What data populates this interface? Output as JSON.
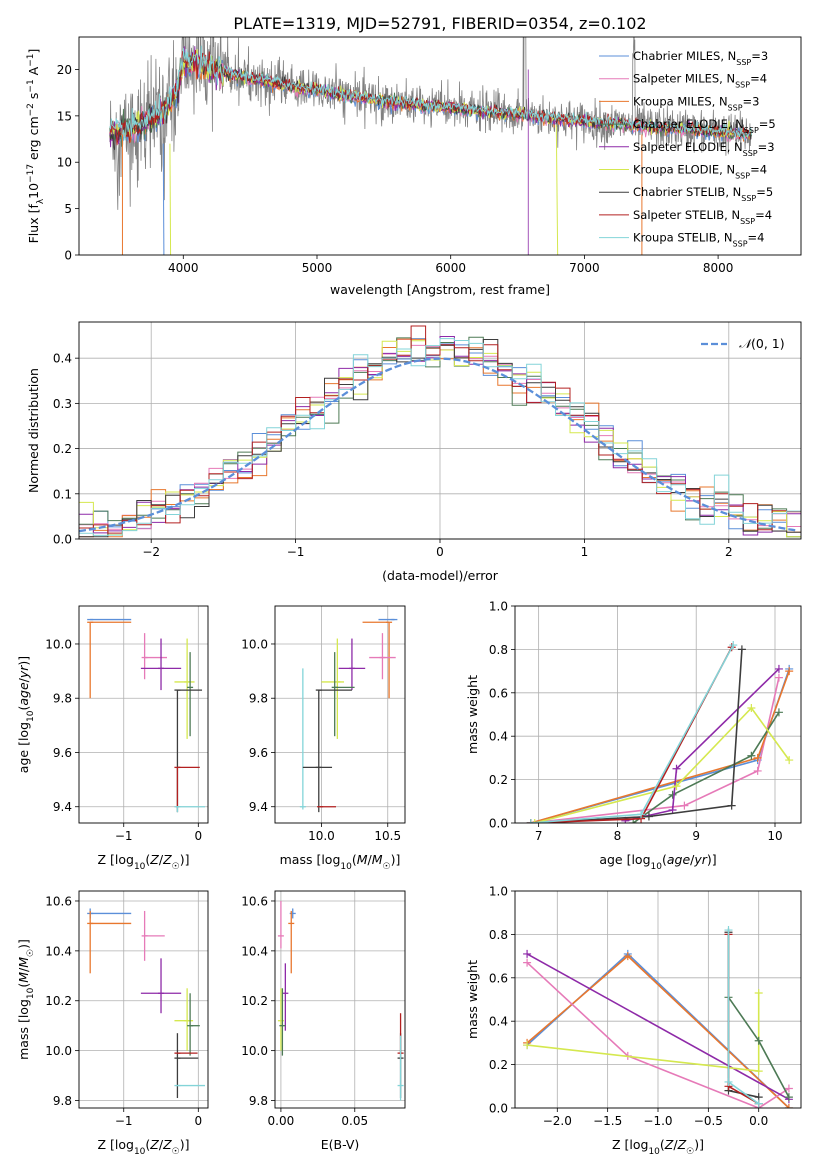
{
  "figure": {
    "title": "PLATE=1319, MJD=52791, FIBERID=0354, z=0.102"
  },
  "colors": {
    "Chabrier MILES": "#5b8fd9",
    "Salpeter MILES": "#e67ab8",
    "Kroupa MILES": "#e8772e",
    "Chabrier ELODIE": "#4d7a55",
    "Salpeter ELODIE": "#8e2aa8",
    "Kroupa ELODIE": "#d5e84f",
    "Chabrier STELIB": "#3d3d3d",
    "Salpeter STELIB": "#b32020",
    "Kroupa STELIB": "#83d4d8",
    "data": "#808080",
    "gaussian": "#5b8fd9"
  },
  "chart_data": [
    {
      "id": "spectrum",
      "type": "line",
      "xlabel": "wavelength [Angstrom, rest frame]",
      "ylabel": "Flux [f_λ10^-17 erg cm^-2 s^-1 A^-1]",
      "xlim": [
        3220,
        8620
      ],
      "ylim": [
        0,
        23.5
      ],
      "xticks": [
        4000,
        5000,
        6000,
        7000,
        8000
      ],
      "yticks": [
        0,
        5,
        10,
        15,
        20
      ],
      "grid": false,
      "legend_position": "upper right",
      "legend": [
        {
          "name": "Chabrier MILES",
          "nssp": "3"
        },
        {
          "name": "Salpeter MILES",
          "nssp": "4"
        },
        {
          "name": "Kroupa MILES",
          "nssp": "3"
        },
        {
          "name": "Chabrier ELODIE",
          "nssp": "5"
        },
        {
          "name": "Salpeter ELODIE",
          "nssp": "3"
        },
        {
          "name": "Kroupa ELODIE",
          "nssp": "4"
        },
        {
          "name": "Chabrier STELIB",
          "nssp": "5"
        },
        {
          "name": "Salpeter STELIB",
          "nssp": "4"
        },
        {
          "name": "Kroupa STELIB",
          "nssp": "4"
        }
      ],
      "continuum_knots": {
        "wavelength": [
          3450,
          3550,
          3650,
          3750,
          3850,
          3950,
          4000,
          4100,
          4200,
          4400,
          4600,
          4860,
          5000,
          5200,
          5500,
          5800,
          6100,
          6300,
          6550,
          6800,
          7000,
          7400,
          7800,
          8200
        ],
        "flux": [
          13.0,
          13.3,
          13.8,
          14.6,
          15.5,
          17.5,
          20.8,
          20.8,
          20.0,
          19.3,
          18.8,
          18.0,
          17.8,
          17.2,
          16.6,
          16.1,
          15.7,
          15.4,
          15.1,
          14.7,
          14.4,
          13.9,
          13.5,
          13.0
        ]
      }
    },
    {
      "id": "histogram",
      "type": "bar",
      "xlabel": "(data-model)/error",
      "ylabel": "Normed distribution",
      "xlim": [
        -2.5,
        2.5
      ],
      "ylim": [
        0,
        0.48
      ],
      "xticks": [
        -2,
        -1,
        0,
        1,
        2
      ],
      "yticks": [
        0.0,
        0.1,
        0.2,
        0.3,
        0.4
      ],
      "grid": true,
      "bin_width": 0.1,
      "reference_curve": {
        "name": "N(0,1)",
        "label_main": "𝒩",
        "label_args": "(0, 1)",
        "mean": 0,
        "sigma": 1
      }
    },
    {
      "id": "age_vs_Z",
      "type": "scatter",
      "xlabel": "Z [log10(Z/Z☉)]",
      "ylabel": "age [log10(age/yr)]",
      "xlim": [
        -1.6,
        0.13
      ],
      "ylim": [
        9.34,
        10.14
      ],
      "xticks": [
        -1,
        0
      ],
      "yticks": [
        9.4,
        9.6,
        9.8,
        10.0
      ],
      "grid": true,
      "points": [
        {
          "series": "Chabrier MILES",
          "x": -1.45,
          "y": 10.09,
          "xerr": [
            0,
            0.55
          ],
          "yerr": [
            0,
            0
          ]
        },
        {
          "series": "Kroupa MILES",
          "x": -1.45,
          "y": 10.08,
          "xerr": [
            0,
            0.55
          ],
          "yerr": [
            0.28,
            0
          ]
        },
        {
          "series": "Salpeter MILES",
          "x": -0.72,
          "y": 9.95,
          "xerr": [
            0,
            0.3
          ],
          "yerr": [
            0.08,
            0.09
          ]
        },
        {
          "series": "Salpeter ELODIE",
          "x": -0.5,
          "y": 9.91,
          "xerr": [
            0.27,
            0.27
          ],
          "yerr": [
            0.08,
            0.11
          ]
        },
        {
          "series": "Kroupa ELODIE",
          "x": -0.15,
          "y": 9.86,
          "xerr": [
            0.17,
            0.1
          ],
          "yerr": [
            0.21,
            0.16
          ]
        },
        {
          "series": "Chabrier ELODIE",
          "x": -0.11,
          "y": 9.84,
          "xerr": [
            0,
            0
          ],
          "yerr": [
            0.18,
            0.13
          ]
        },
        {
          "series": "Chabrier STELIB",
          "x": -0.28,
          "y": 9.83,
          "xerr": [
            0,
            0.33
          ],
          "yerr": [
            0.45,
            0
          ]
        },
        {
          "series": "Salpeter STELIB",
          "x": -0.28,
          "y": 9.545,
          "xerr": [
            0,
            0.3
          ],
          "yerr": [
            0.15,
            0
          ]
        },
        {
          "series": "Kroupa STELIB",
          "x": -0.28,
          "y": 9.4,
          "xerr": [
            0,
            0.37
          ],
          "yerr": [
            0.02,
            0
          ]
        }
      ]
    },
    {
      "id": "age_vs_mass",
      "type": "scatter",
      "xlabel": "mass [log10(M/M☉)]",
      "ylabel": "",
      "xlim": [
        9.65,
        10.63
      ],
      "ylim": [
        9.34,
        10.14
      ],
      "xticks": [
        10.0,
        10.5
      ],
      "yticks": [
        9.4,
        9.6,
        9.8,
        10.0
      ],
      "grid": true,
      "points": [
        {
          "series": "Chabrier MILES",
          "x": 10.55,
          "y": 10.09,
          "xerr": [
            0.12,
            0
          ],
          "yerr": [
            0,
            0
          ]
        },
        {
          "series": "Kroupa MILES",
          "x": 10.51,
          "y": 10.08,
          "xerr": [
            0.2,
            0
          ],
          "yerr": [
            0.28,
            0
          ]
        },
        {
          "series": "Salpeter MILES",
          "x": 10.46,
          "y": 9.95,
          "xerr": [
            0.1,
            0.1
          ],
          "yerr": [
            0.08,
            0.09
          ]
        },
        {
          "series": "Salpeter ELODIE",
          "x": 10.23,
          "y": 9.91,
          "xerr": [
            0.1,
            0.1
          ],
          "yerr": [
            0.08,
            0.11
          ]
        },
        {
          "series": "Kroupa ELODIE",
          "x": 10.12,
          "y": 9.86,
          "xerr": [
            0.12,
            0.05
          ],
          "yerr": [
            0.21,
            0.16
          ]
        },
        {
          "series": "Chabrier ELODIE",
          "x": 10.1,
          "y": 9.84,
          "xerr": [
            0,
            0.15
          ],
          "yerr": [
            0.18,
            0.13
          ]
        },
        {
          "series": "Chabrier STELIB",
          "x": 9.98,
          "y": 9.83,
          "xerr": [
            0,
            0.25
          ],
          "yerr": [
            0.45,
            0
          ]
        },
        {
          "series": "Salpeter STELIB",
          "x": 9.99,
          "y": 9.4,
          "xerr": [
            0,
            0.12
          ],
          "yerr": [
            0,
            0
          ]
        },
        {
          "series": "Kroupa STELIB",
          "x": 9.86,
          "y": 9.4,
          "xerr": [
            0,
            0
          ],
          "yerr": [
            0.01,
            0.51
          ]
        },
        {
          "series": "Chabrier STELIB",
          "x": 9.98,
          "y": 9.545,
          "xerr": [
            0.12,
            0.1
          ],
          "yerr": [
            0,
            0
          ]
        }
      ]
    },
    {
      "id": "massweight_vs_age",
      "type": "line",
      "xlabel": "age [log10(age/yr)]",
      "ylabel": "mass weight",
      "xlim": [
        6.7,
        10.33
      ],
      "ylim": [
        0,
        1.0
      ],
      "xticks": [
        7,
        8,
        9,
        10
      ],
      "yticks": [
        0.0,
        0.2,
        0.4,
        0.6,
        0.8,
        1.0
      ],
      "grid": true,
      "series": [
        {
          "name": "Chabrier MILES",
          "x": [
            6.9,
            9.78,
            10.18
          ],
          "y": [
            0.0,
            0.29,
            0.71
          ]
        },
        {
          "name": "Salpeter MILES",
          "x": [
            6.9,
            8.85,
            9.78,
            10.05
          ],
          "y": [
            0.0,
            0.08,
            0.24,
            0.67
          ]
        },
        {
          "name": "Kroupa MILES",
          "x": [
            6.9,
            9.78,
            10.18
          ],
          "y": [
            0.0,
            0.3,
            0.7
          ]
        },
        {
          "name": "Chabrier ELODIE",
          "x": [
            8.2,
            8.7,
            9.7,
            10.05
          ],
          "y": [
            0.0,
            0.13,
            0.31,
            0.51
          ]
        },
        {
          "name": "Salpeter ELODIE",
          "x": [
            8.1,
            8.7,
            8.75,
            10.05
          ],
          "y": [
            0.01,
            0.06,
            0.25,
            0.71
          ]
        },
        {
          "name": "Kroupa ELODIE",
          "x": [
            6.95,
            8.75,
            9.7,
            10.18
          ],
          "y": [
            0.0,
            0.17,
            0.53,
            0.29
          ]
        },
        {
          "name": "Chabrier STELIB",
          "x": [
            6.9,
            8.4,
            9.45,
            9.58
          ],
          "y": [
            0.0,
            0.03,
            0.08,
            0.8
          ]
        },
        {
          "name": "Salpeter STELIB",
          "x": [
            6.9,
            8.3,
            9.45
          ],
          "y": [
            0.0,
            0.02,
            0.81
          ]
        },
        {
          "name": "Kroupa STELIB",
          "x": [
            6.9,
            8.3,
            9.47
          ],
          "y": [
            0.0,
            0.04,
            0.82
          ]
        }
      ]
    },
    {
      "id": "mass_vs_Z",
      "type": "scatter",
      "xlabel": "Z [log10(Z/Z☉)]",
      "ylabel": "mass [log10(M/M☉)]",
      "xlim": [
        -1.6,
        0.13
      ],
      "ylim": [
        9.77,
        10.64
      ],
      "xticks": [
        -1,
        0
      ],
      "yticks": [
        9.8,
        10.0,
        10.2,
        10.4,
        10.6
      ],
      "grid": true,
      "points": [
        {
          "series": "Chabrier MILES",
          "x": -1.45,
          "y": 10.55,
          "xerr": [
            0,
            0.55
          ],
          "yerr": [
            0.02,
            0.02
          ]
        },
        {
          "series": "Kroupa MILES",
          "x": -1.45,
          "y": 10.51,
          "xerr": [
            0,
            0.55
          ],
          "yerr": [
            0.2,
            0.05
          ]
        },
        {
          "series": "Salpeter MILES",
          "x": -0.72,
          "y": 10.46,
          "xerr": [
            0,
            0.27
          ],
          "yerr": [
            0.1,
            0.1
          ]
        },
        {
          "series": "Salpeter ELODIE",
          "x": -0.5,
          "y": 10.23,
          "xerr": [
            0.27,
            0.27
          ],
          "yerr": [
            0.08,
            0.14
          ]
        },
        {
          "series": "Kroupa ELODIE",
          "x": -0.15,
          "y": 10.12,
          "xerr": [
            0.17,
            0.08
          ],
          "yerr": [
            0.12,
            0.13
          ]
        },
        {
          "series": "Chabrier ELODIE",
          "x": -0.11,
          "y": 10.1,
          "xerr": [
            0,
            0.13
          ],
          "yerr": [
            0.12,
            0.13
          ]
        },
        {
          "series": "Chabrier STELIB",
          "x": -0.28,
          "y": 9.97,
          "xerr": [
            0,
            0.28
          ],
          "yerr": [
            0.16,
            0.1
          ]
        },
        {
          "series": "Salpeter STELIB",
          "x": -0.28,
          "y": 9.99,
          "xerr": [
            0,
            0.27
          ],
          "yerr": [
            0,
            0
          ]
        },
        {
          "series": "Kroupa STELIB",
          "x": -0.28,
          "y": 9.86,
          "xerr": [
            0,
            0.37
          ],
          "yerr": [
            0,
            0
          ]
        }
      ]
    },
    {
      "id": "mass_vs_ebv",
      "type": "scatter",
      "xlabel": "E(B-V)",
      "ylabel": "",
      "xlim": [
        -0.004,
        0.084
      ],
      "ylim": [
        9.77,
        10.64
      ],
      "xticks": [
        0.0,
        0.05
      ],
      "yticks": [
        9.8,
        10.0,
        10.2,
        10.4,
        10.6
      ],
      "grid": true,
      "points": [
        {
          "series": "Chabrier MILES",
          "x": 0.008,
          "y": 10.55,
          "xerr": [
            0,
            0
          ],
          "yerr": [
            0.02,
            0.02
          ]
        },
        {
          "series": "Kroupa MILES",
          "x": 0.007,
          "y": 10.51,
          "xerr": [
            0,
            0
          ],
          "yerr": [
            0.2,
            0.05
          ]
        },
        {
          "series": "Salpeter MILES",
          "x": 0.0,
          "y": 10.46,
          "xerr": [
            0,
            0
          ],
          "yerr": [
            0.05,
            0.14
          ]
        },
        {
          "series": "Salpeter ELODIE",
          "x": 0.003,
          "y": 10.23,
          "xerr": [
            0,
            0
          ],
          "yerr": [
            0.15,
            0.12
          ]
        },
        {
          "series": "Kroupa ELODIE",
          "x": 0.0,
          "y": 10.12,
          "xerr": [
            0,
            0
          ],
          "yerr": [
            0.12,
            0.13
          ]
        },
        {
          "series": "Chabrier ELODIE",
          "x": 0.001,
          "y": 10.1,
          "xerr": [
            0,
            0
          ],
          "yerr": [
            0.12,
            0.15
          ]
        },
        {
          "series": "Chabrier STELIB",
          "x": 0.081,
          "y": 9.97,
          "xerr": [
            0,
            0
          ],
          "yerr": [
            0.16,
            0.1
          ]
        },
        {
          "series": "Salpeter STELIB",
          "x": 0.081,
          "y": 9.99,
          "xerr": [
            0,
            0
          ],
          "yerr": [
            0,
            0.16
          ]
        },
        {
          "series": "Kroupa STELIB",
          "x": 0.081,
          "y": 9.86,
          "xerr": [
            0,
            0
          ],
          "yerr": [
            0.06,
            0.2
          ]
        }
      ]
    },
    {
      "id": "massweight_vs_Z",
      "type": "line",
      "xlabel": "Z [log10(Z/Z☉)]",
      "ylabel": "mass weight",
      "xlim": [
        -2.42,
        0.42
      ],
      "ylim": [
        0,
        1.0
      ],
      "xticks": [
        -2.0,
        -1.5,
        -1.0,
        -0.5,
        0.0
      ],
      "yticks": [
        0.0,
        0.2,
        0.4,
        0.6,
        0.8,
        1.0
      ],
      "grid": true,
      "series": [
        {
          "name": "Chabrier MILES",
          "x": [
            -2.3,
            -1.3,
            0.3
          ],
          "y": [
            0.29,
            0.71,
            0.0
          ]
        },
        {
          "name": "Kroupa MILES",
          "x": [
            -2.3,
            -1.3,
            0.3
          ],
          "y": [
            0.3,
            0.7,
            0.0
          ]
        },
        {
          "name": "Salpeter MILES",
          "x": [
            -2.3,
            -1.3,
            0.0,
            0.3
          ],
          "y": [
            0.67,
            0.24,
            0.0,
            0.09
          ]
        },
        {
          "name": "Salpeter ELODIE",
          "x": [
            -2.3,
            0.3
          ],
          "y": [
            0.71,
            0.04
          ]
        },
        {
          "name": "Kroupa ELODIE",
          "x": [
            -2.3,
            0.0,
            0.0
          ],
          "y": [
            0.29,
            0.17,
            0.53
          ]
        },
        {
          "name": "Chabrier ELODIE",
          "x": [
            -0.3,
            0.0,
            0.3
          ],
          "y": [
            0.51,
            0.31,
            0.05
          ]
        },
        {
          "name": "Chabrier STELIB",
          "x": [
            -0.3,
            -0.3,
            0.0
          ],
          "y": [
            0.81,
            0.08,
            0.05
          ]
        },
        {
          "name": "Salpeter STELIB",
          "x": [
            -0.3,
            -0.3,
            0.0
          ],
          "y": [
            0.8,
            0.1,
            0.02
          ]
        },
        {
          "name": "Kroupa STELIB",
          "x": [
            -0.3,
            -0.3,
            0.0
          ],
          "y": [
            0.82,
            0.12,
            0.02
          ]
        }
      ]
    }
  ]
}
